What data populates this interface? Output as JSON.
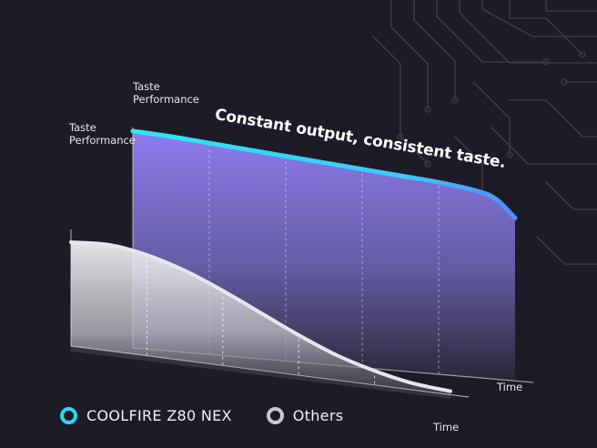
{
  "chart_data": {
    "type": "area",
    "headline": "Constant output, consistent taste.",
    "ylabel_line1": "Taste",
    "ylabel_line2": "Performance",
    "xlabel": "Time",
    "grid": "dashed vertical gridlines",
    "series": [
      {
        "name": "COOLFIRE Z80 NEX",
        "color": "#29d6f0",
        "x": [
          0,
          10,
          20,
          30,
          40,
          50,
          60,
          70,
          80,
          90,
          95,
          100
        ],
        "values": [
          100,
          99,
          97.5,
          96,
          94.5,
          93,
          91.5,
          90,
          88.5,
          86,
          83,
          75
        ]
      },
      {
        "name": "Others",
        "color": "#c9c9cf",
        "x": [
          0,
          10,
          20,
          30,
          40,
          50,
          60,
          70,
          80,
          90,
          100
        ],
        "values": [
          95,
          97,
          92,
          82,
          68,
          52,
          36,
          22,
          12,
          5,
          2
        ]
      }
    ],
    "ylim": [
      0,
      100
    ],
    "xlim": [
      0,
      100
    ],
    "legend_position": "bottom-left"
  }
}
